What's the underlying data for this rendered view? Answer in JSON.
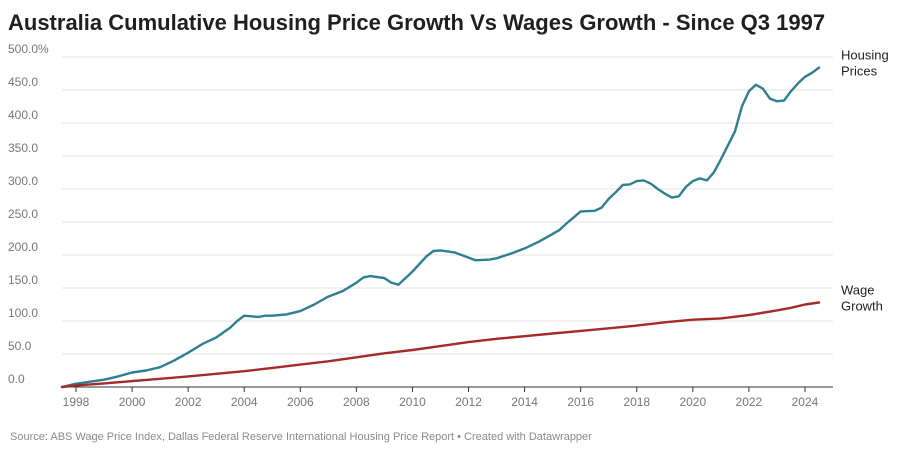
{
  "title": "Australia Cumulative Housing Price Growth Vs Wages Growth - Since Q3 1997",
  "source": "Source: ABS Wage Price Index, Dallas Federal Reserve International Housing Price Report • Created with Datawrapper",
  "colors": {
    "housing": "#2e7f92",
    "wage": "#a52a2a",
    "grid": "#e3e3e3",
    "axis": "#333333"
  },
  "chart_data": {
    "type": "line",
    "title": "Australia Cumulative Housing Price Growth Vs Wages Growth - Since Q3 1997",
    "xlabel": "",
    "ylabel": "",
    "xlim": [
      1997.5,
      2025.0
    ],
    "ylim": [
      0,
      500
    ],
    "grid": true,
    "y_ticks": [
      {
        "value": 0,
        "label": "0.0"
      },
      {
        "value": 50,
        "label": "50.0"
      },
      {
        "value": 100,
        "label": "100.0"
      },
      {
        "value": 150,
        "label": "150.0"
      },
      {
        "value": 200,
        "label": "200.0"
      },
      {
        "value": 250,
        "label": "250.0"
      },
      {
        "value": 300,
        "label": "300.0"
      },
      {
        "value": 350,
        "label": "350.0"
      },
      {
        "value": 400,
        "label": "400.0"
      },
      {
        "value": 450,
        "label": "450.0"
      },
      {
        "value": 500,
        "label": "500.0%"
      }
    ],
    "x_ticks": [
      {
        "value": 1998,
        "label": "1998"
      },
      {
        "value": 2000,
        "label": "2000"
      },
      {
        "value": 2002,
        "label": "2002"
      },
      {
        "value": 2004,
        "label": "2004"
      },
      {
        "value": 2006,
        "label": "2006"
      },
      {
        "value": 2008,
        "label": "2008"
      },
      {
        "value": 2010,
        "label": "2010"
      },
      {
        "value": 2012,
        "label": "2012"
      },
      {
        "value": 2014,
        "label": "2014"
      },
      {
        "value": 2016,
        "label": "2016"
      },
      {
        "value": 2018,
        "label": "2018"
      },
      {
        "value": 2020,
        "label": "2020"
      },
      {
        "value": 2022,
        "label": "2022"
      },
      {
        "value": 2024,
        "label": "2024"
      }
    ],
    "legend_placement": "end-of-line labels",
    "series": [
      {
        "name": "Housing Prices",
        "label_lines": [
          "Housing",
          "Prices"
        ],
        "color": "#2e7f92",
        "x": [
          1997.5,
          1998.0,
          1998.5,
          1999.0,
          1999.5,
          2000.0,
          2000.5,
          2001.0,
          2001.5,
          2001.75,
          2002.0,
          2002.5,
          2003.0,
          2003.5,
          2003.75,
          2004.0,
          2004.5,
          2004.75,
          2005.0,
          2005.5,
          2006.0,
          2006.5,
          2006.75,
          2007.0,
          2007.5,
          2008.0,
          2008.25,
          2008.5,
          2009.0,
          2009.25,
          2009.5,
          2010.0,
          2010.5,
          2010.75,
          2011.0,
          2011.5,
          2012.0,
          2012.25,
          2012.75,
          2013.0,
          2013.5,
          2014.0,
          2014.5,
          2015.0,
          2015.25,
          2015.5,
          2016.0,
          2016.5,
          2016.75,
          2017.0,
          2017.25,
          2017.5,
          2017.75,
          2018.0,
          2018.25,
          2018.5,
          2018.75,
          2019.0,
          2019.25,
          2019.5,
          2019.75,
          2020.0,
          2020.25,
          2020.5,
          2020.75,
          2021.0,
          2021.5,
          2021.75,
          2022.0,
          2022.25,
          2022.5,
          2022.75,
          2023.0,
          2023.25,
          2023.5,
          2023.75,
          2024.0,
          2024.25,
          2024.5
        ],
        "values": [
          0,
          5,
          8,
          11,
          16,
          22,
          25,
          30,
          40,
          46,
          52,
          65,
          75,
          90,
          100,
          108,
          106,
          108,
          108,
          110,
          115,
          125,
          131,
          137,
          145,
          158,
          166,
          168,
          165,
          158,
          155,
          175,
          198,
          206,
          207,
          204,
          196,
          192,
          193,
          195,
          202,
          210,
          220,
          232,
          238,
          248,
          266,
          267,
          272,
          285,
          295,
          306,
          307,
          312,
          313,
          308,
          300,
          293,
          287,
          289,
          303,
          312,
          316,
          313,
          325,
          345,
          387,
          425,
          448,
          458,
          452,
          437,
          433,
          434,
          448,
          460,
          470,
          476,
          484
        ]
      },
      {
        "name": "Wage Growth",
        "label_lines": [
          "Wage",
          "Growth"
        ],
        "color": "#a52a2a",
        "x": [
          1997.5,
          1998.0,
          1999.0,
          2000.0,
          2001.0,
          2002.0,
          2003.0,
          2004.0,
          2005.0,
          2006.0,
          2007.0,
          2008.0,
          2009.0,
          2010.0,
          2011.0,
          2012.0,
          2013.0,
          2014.0,
          2015.0,
          2016.0,
          2017.0,
          2018.0,
          2019.0,
          2020.0,
          2021.0,
          2022.0,
          2023.0,
          2023.5,
          2024.0,
          2024.5
        ],
        "values": [
          0,
          2.5,
          5.5,
          9,
          12.5,
          16,
          20,
          24,
          29,
          34,
          39,
          45,
          51,
          56,
          62,
          68,
          73,
          77,
          81,
          85,
          89,
          93,
          98,
          102,
          104,
          109,
          116,
          120,
          125,
          128
        ]
      }
    ]
  }
}
